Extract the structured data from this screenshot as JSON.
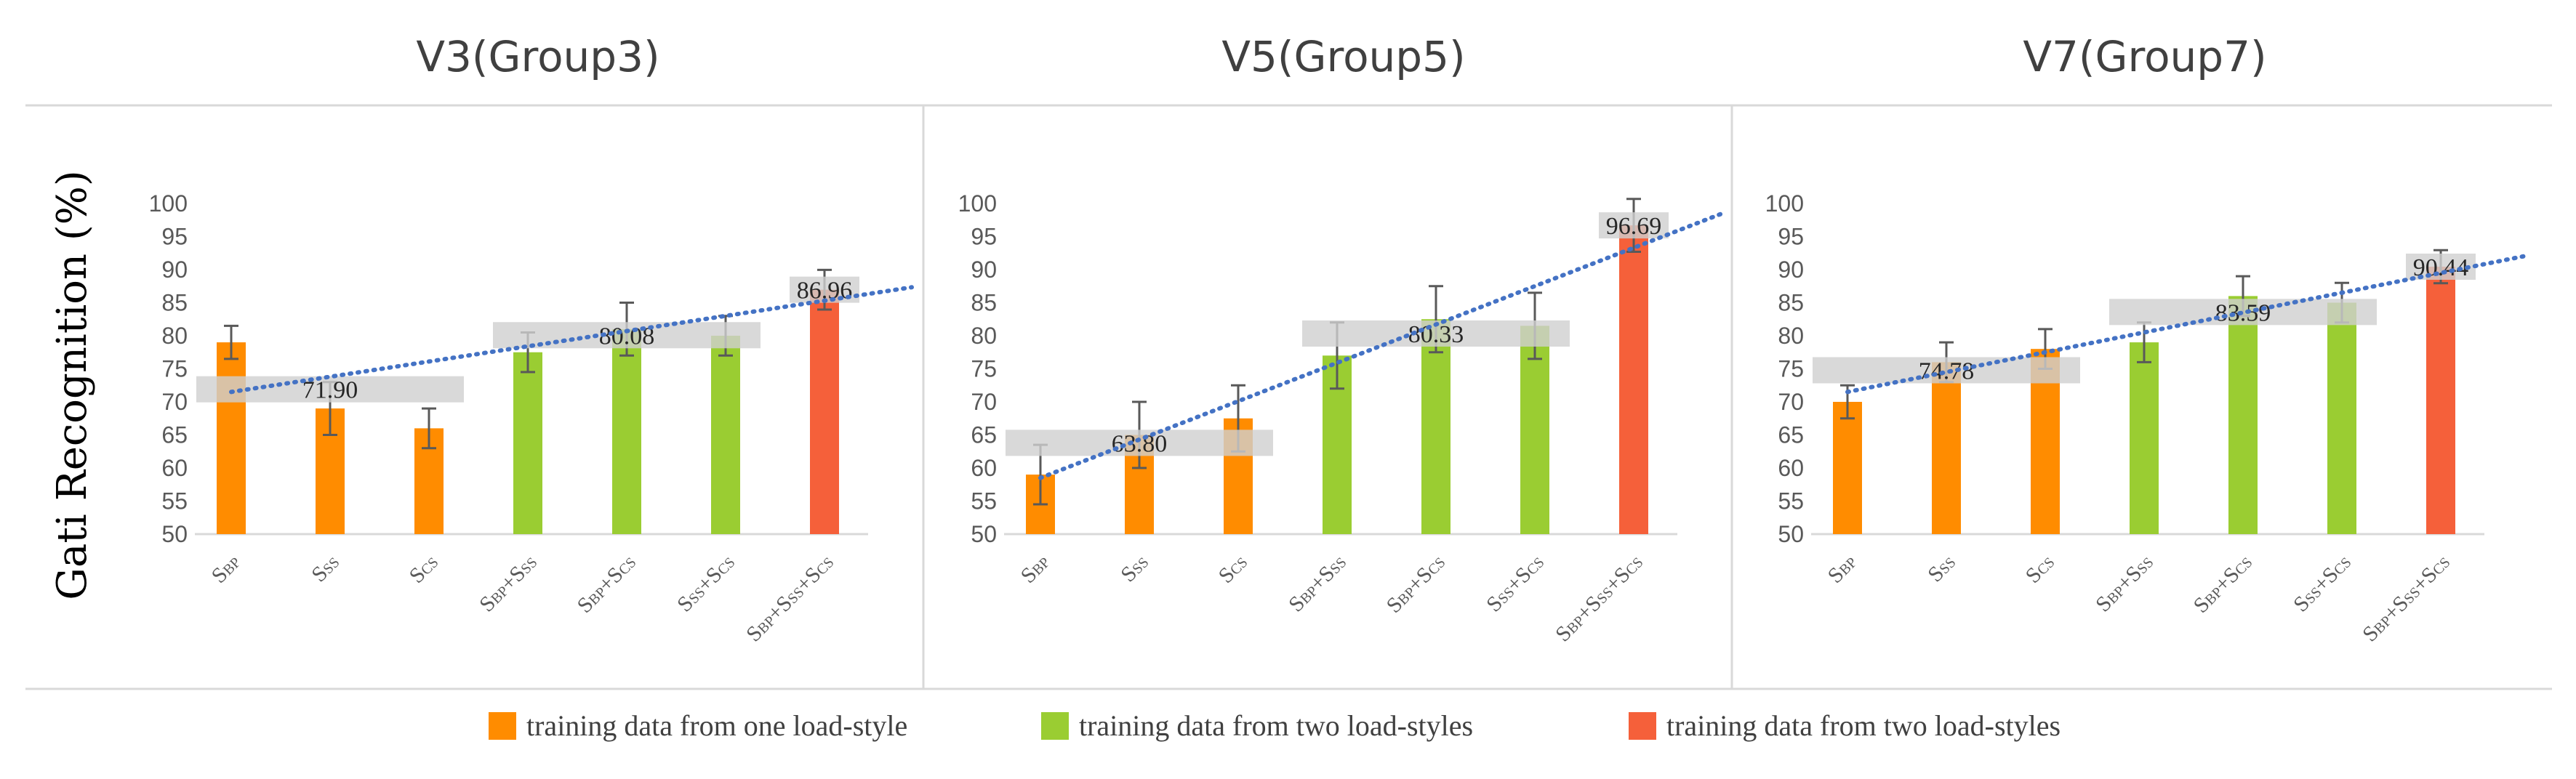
{
  "ylabel": "Gati Recognition (%)",
  "colors": {
    "one": "#ff8c00",
    "two": "#9acd32",
    "three": "#f5603a",
    "trend": "#4472c4",
    "errorbar": "#595959",
    "band": "#cfcfcf",
    "axis": "#d9d9d9"
  },
  "legend": [
    {
      "label": "training data from one load-style",
      "color_key": "one"
    },
    {
      "label": "training data from two load-styles",
      "color_key": "two"
    },
    {
      "label": "training data from two load-styles",
      "color_key": "three"
    }
  ],
  "chart_data": [
    {
      "type": "bar",
      "title": "V3(Group3)",
      "ylim": [
        50,
        100
      ],
      "yticks": [
        "50",
        "55",
        "60",
        "65",
        "70",
        "75",
        "80",
        "85",
        "90",
        "95",
        "100"
      ],
      "categories": [
        [
          {
            "t": "S"
          },
          {
            "t": "BP",
            "s": 1
          }
        ],
        [
          {
            "t": "S"
          },
          {
            "t": "SS",
            "s": 1
          }
        ],
        [
          {
            "t": "S"
          },
          {
            "t": "CS",
            "s": 1
          }
        ],
        [
          {
            "t": "S"
          },
          {
            "t": "BP",
            "s": 1
          },
          {
            "t": "+S"
          },
          {
            "t": "SS",
            "s": 1
          }
        ],
        [
          {
            "t": "S"
          },
          {
            "t": "BP",
            "s": 1
          },
          {
            "t": "+S"
          },
          {
            "t": "CS",
            "s": 1
          }
        ],
        [
          {
            "t": "S"
          },
          {
            "t": "SS",
            "s": 1
          },
          {
            "t": "+S"
          },
          {
            "t": "CS",
            "s": 1
          }
        ],
        [
          {
            "t": "S"
          },
          {
            "t": "BP",
            "s": 1
          },
          {
            "t": "+S"
          },
          {
            "t": "SS",
            "s": 1
          },
          {
            "t": "+S"
          },
          {
            "t": "CS",
            "s": 1
          }
        ]
      ],
      "values": [
        79,
        69,
        66,
        77.5,
        81,
        80,
        86.96
      ],
      "errors": [
        2.5,
        4,
        3,
        3,
        4,
        3,
        3
      ],
      "groups": [
        "one",
        "one",
        "one",
        "two",
        "two",
        "two",
        "three"
      ],
      "group_means": [
        {
          "label": "71.90",
          "value": 71.9,
          "from": 0,
          "to": 2
        },
        {
          "label": "80.08",
          "value": 80.08,
          "from": 3,
          "to": 5
        },
        {
          "label": "86.96",
          "value": 86.96,
          "from": 6,
          "to": 6
        }
      ],
      "trend": {
        "start": 71.5,
        "slope": 2.3
      }
    },
    {
      "type": "bar",
      "title": "V5(Group5)",
      "ylim": [
        50,
        100
      ],
      "yticks": [
        "50",
        "55",
        "60",
        "65",
        "70",
        "75",
        "80",
        "85",
        "90",
        "95",
        "100"
      ],
      "categories": [
        [
          {
            "t": "S"
          },
          {
            "t": "BP",
            "s": 1
          }
        ],
        [
          {
            "t": "S"
          },
          {
            "t": "SS",
            "s": 1
          }
        ],
        [
          {
            "t": "S"
          },
          {
            "t": "CS",
            "s": 1
          }
        ],
        [
          {
            "t": "S"
          },
          {
            "t": "BP",
            "s": 1
          },
          {
            "t": "+S"
          },
          {
            "t": "SS",
            "s": 1
          }
        ],
        [
          {
            "t": "S"
          },
          {
            "t": "BP",
            "s": 1
          },
          {
            "t": "+S"
          },
          {
            "t": "CS",
            "s": 1
          }
        ],
        [
          {
            "t": "S"
          },
          {
            "t": "SS",
            "s": 1
          },
          {
            "t": "+S"
          },
          {
            "t": "CS",
            "s": 1
          }
        ],
        [
          {
            "t": "S"
          },
          {
            "t": "BP",
            "s": 1
          },
          {
            "t": "+S"
          },
          {
            "t": "SS",
            "s": 1
          },
          {
            "t": "+S"
          },
          {
            "t": "CS",
            "s": 1
          }
        ]
      ],
      "values": [
        59,
        65,
        67.5,
        77,
        82.5,
        81.5,
        96.69
      ],
      "errors": [
        4.5,
        5,
        5,
        5,
        5,
        5,
        4
      ],
      "groups": [
        "one",
        "one",
        "one",
        "two",
        "two",
        "two",
        "three"
      ],
      "group_means": [
        {
          "label": "63.80",
          "value": 63.8,
          "from": 0,
          "to": 2
        },
        {
          "label": "80.33",
          "value": 80.33,
          "from": 3,
          "to": 5
        },
        {
          "label": "96.69",
          "value": 96.69,
          "from": 6,
          "to": 6
        }
      ],
      "trend": {
        "start": 58.5,
        "slope": 5.8
      }
    },
    {
      "type": "bar",
      "title": "V7(Group7)",
      "ylim": [
        50,
        100
      ],
      "yticks": [
        "50",
        "55",
        "60",
        "65",
        "70",
        "75",
        "80",
        "85",
        "90",
        "95",
        "100"
      ],
      "categories": [
        [
          {
            "t": "S"
          },
          {
            "t": "BP",
            "s": 1
          }
        ],
        [
          {
            "t": "S"
          },
          {
            "t": "SS",
            "s": 1
          }
        ],
        [
          {
            "t": "S"
          },
          {
            "t": "CS",
            "s": 1
          }
        ],
        [
          {
            "t": "S"
          },
          {
            "t": "BP",
            "s": 1
          },
          {
            "t": "+S"
          },
          {
            "t": "SS",
            "s": 1
          }
        ],
        [
          {
            "t": "S"
          },
          {
            "t": "BP",
            "s": 1
          },
          {
            "t": "+S"
          },
          {
            "t": "CS",
            "s": 1
          }
        ],
        [
          {
            "t": "S"
          },
          {
            "t": "SS",
            "s": 1
          },
          {
            "t": "+S"
          },
          {
            "t": "CS",
            "s": 1
          }
        ],
        [
          {
            "t": "S"
          },
          {
            "t": "BP",
            "s": 1
          },
          {
            "t": "+S"
          },
          {
            "t": "SS",
            "s": 1
          },
          {
            "t": "+S"
          },
          {
            "t": "CS",
            "s": 1
          }
        ]
      ],
      "values": [
        70,
        76,
        78,
        79,
        86,
        85,
        90.44
      ],
      "errors": [
        2.5,
        3,
        3,
        3,
        3,
        3,
        2.5
      ],
      "groups": [
        "one",
        "one",
        "one",
        "two",
        "two",
        "two",
        "three"
      ],
      "group_means": [
        {
          "label": "74.78",
          "value": 74.78,
          "from": 0,
          "to": 2
        },
        {
          "label": "83.59",
          "value": 83.59,
          "from": 3,
          "to": 5
        },
        {
          "label": "90.44",
          "value": 90.44,
          "from": 6,
          "to": 6
        }
      ],
      "trend": {
        "start": 71.5,
        "slope": 3.0
      }
    }
  ]
}
